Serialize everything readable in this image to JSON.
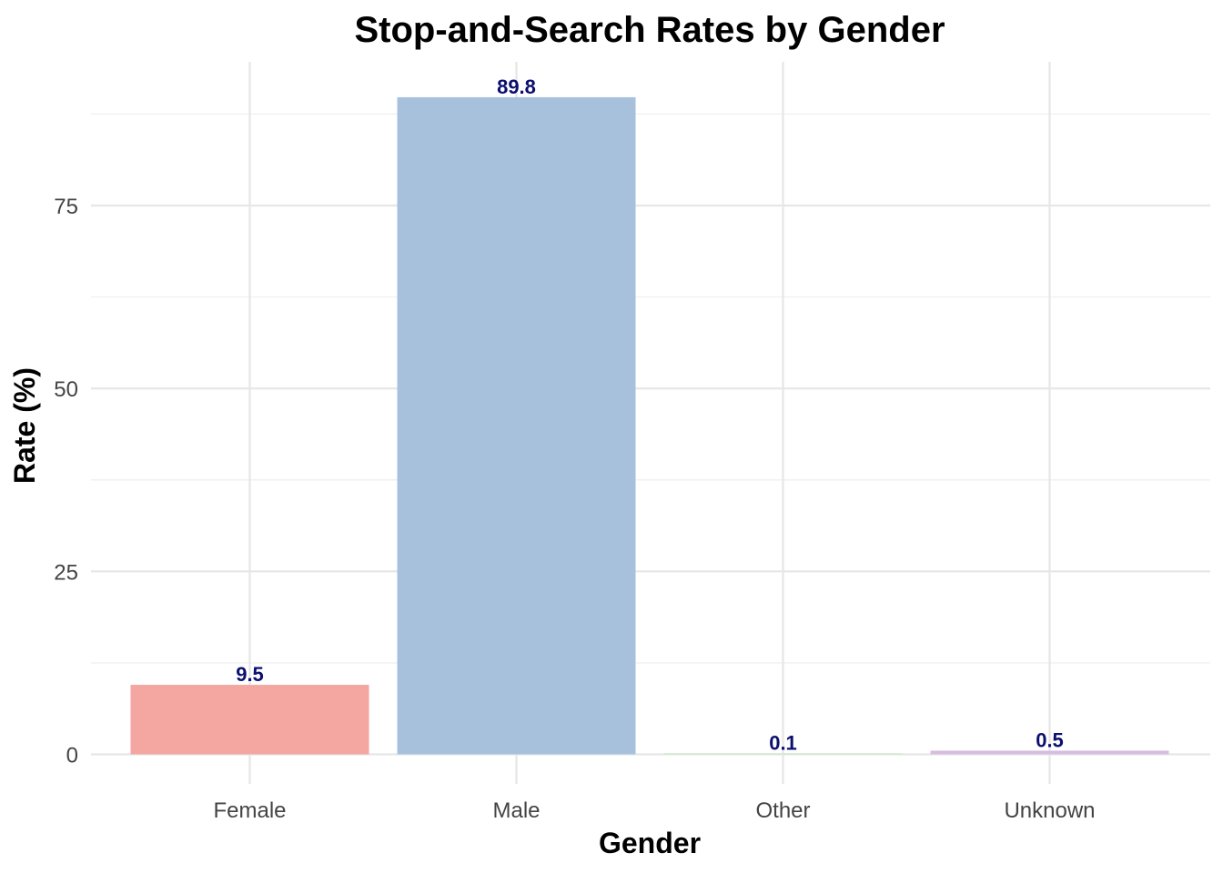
{
  "chart_data": {
    "type": "bar",
    "title": "Stop-and-Search Rates by Gender",
    "xlabel": "Gender",
    "ylabel": "Rate (%)",
    "categories": [
      "Female",
      "Male",
      "Other",
      "Unknown"
    ],
    "values": [
      9.5,
      89.8,
      0.1,
      0.5
    ],
    "value_labels": [
      "9.5",
      "89.8",
      "0.1",
      "0.5"
    ],
    "colors": [
      "#f4a6a0",
      "#a7c1dd",
      "#c9e8c7",
      "#d6bde0"
    ],
    "label_color": "#0b0f6e",
    "ylim": [
      0,
      94.3
    ],
    "yticks": [
      0,
      25,
      50,
      75
    ],
    "ytick_labels": [
      "0",
      "25",
      "50",
      "75"
    ],
    "grid": true,
    "legend": "none"
  }
}
